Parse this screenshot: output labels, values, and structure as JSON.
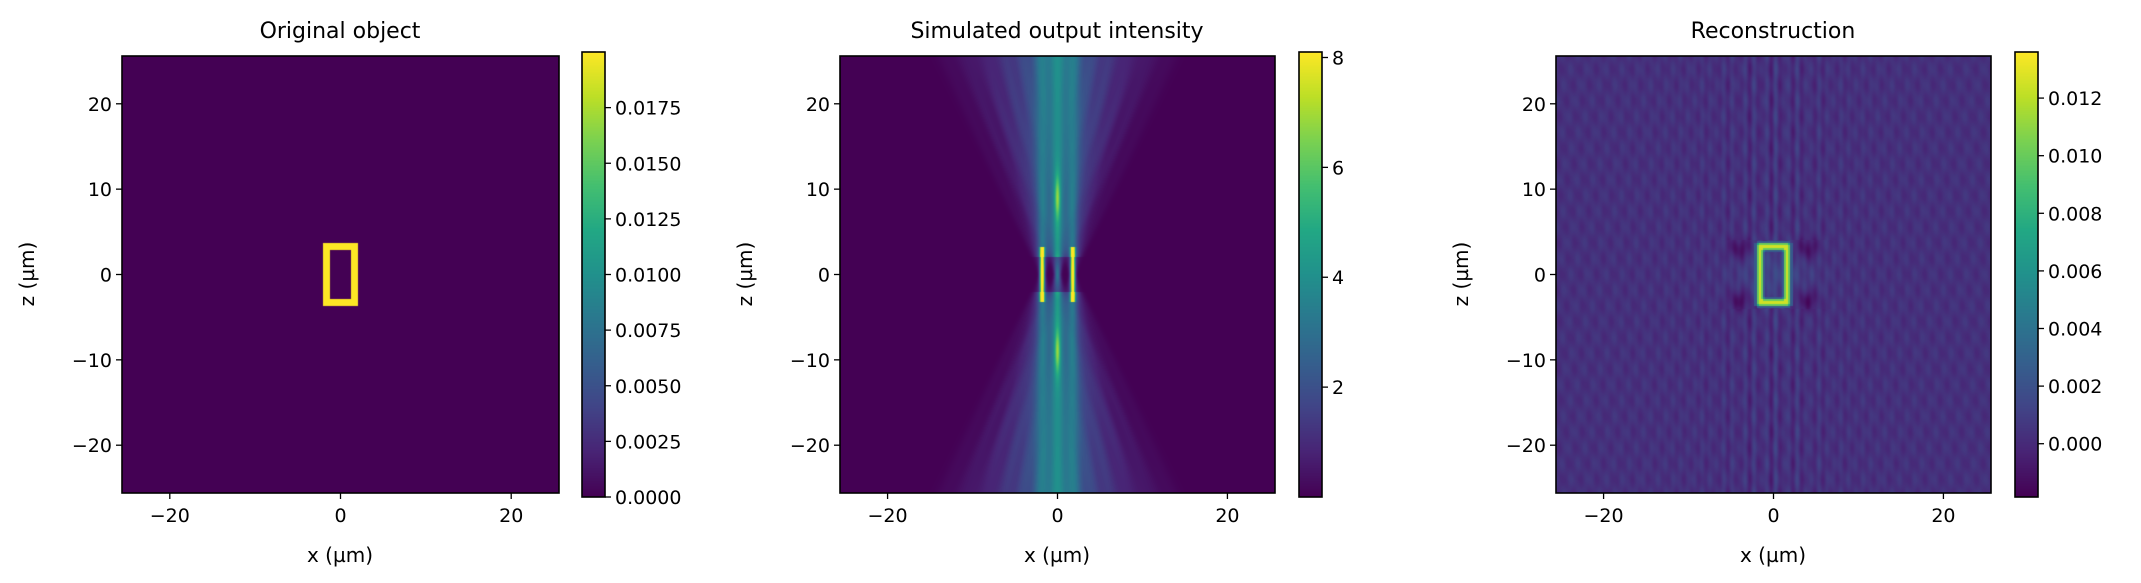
{
  "chart_data": [
    {
      "type": "heatmap",
      "title": "Original object",
      "xlabel": "x (µm)",
      "ylabel": "z (µm)",
      "xlim": [
        -25.6,
        25.6
      ],
      "ylim": [
        -25.6,
        25.6
      ],
      "xticks": [
        "−20",
        "0",
        "20"
      ],
      "xtick_values": [
        -20,
        0,
        20
      ],
      "yticks": [
        "−20",
        "−10",
        "0",
        "10",
        "20"
      ],
      "ytick_values": [
        -20,
        -10,
        0,
        10,
        20
      ],
      "colormap": "viridis",
      "colorbar": {
        "range": [
          0.0,
          0.02
        ],
        "tick_values": [
          0.0,
          0.0025,
          0.005,
          0.0075,
          0.01,
          0.0125,
          0.015,
          0.0175
        ],
        "tick_labels": [
          "0.0000",
          "0.0025",
          "0.0050",
          "0.0075",
          "0.0100",
          "0.0125",
          "0.0150",
          "0.0175"
        ]
      },
      "features": {
        "background_value": 0.0,
        "rectangle_outline": {
          "x_range": [
            -2.0,
            2.0
          ],
          "z_range": [
            -3.7,
            3.7
          ],
          "thickness": 0.8,
          "value": 0.02
        }
      }
    },
    {
      "type": "heatmap",
      "title": "Simulated output intensity",
      "xlabel": "x (µm)",
      "ylabel": "z (µm)",
      "xlim": [
        -25.6,
        25.6
      ],
      "ylim": [
        -25.6,
        25.6
      ],
      "xticks": [
        "−20",
        "0",
        "20"
      ],
      "xtick_values": [
        -20,
        0,
        20
      ],
      "yticks": [
        "−20",
        "−10",
        "0",
        "10",
        "20"
      ],
      "ytick_values": [
        -20,
        -10,
        0,
        10,
        20
      ],
      "colormap": "viridis",
      "colorbar": {
        "range": [
          0.0,
          8.1
        ],
        "tick_values": [
          2,
          4,
          6,
          8
        ],
        "tick_labels": [
          "2",
          "4",
          "6",
          "8"
        ]
      },
      "features": {
        "background_value": 0.0,
        "edge_peaks": {
          "x_positions": [
            -1.8,
            1.8
          ],
          "z_range": [
            -3.2,
            3.2
          ],
          "value": 8.0
        },
        "beam_pattern": "hourglass fan of diffracted beams crossing near z = 0"
      }
    },
    {
      "type": "heatmap",
      "title": "Reconstruction",
      "xlabel": "x (µm)",
      "ylabel": "z (µm)",
      "xlim": [
        -25.6,
        25.6
      ],
      "ylim": [
        -25.6,
        25.6
      ],
      "xticks": [
        "−20",
        "0",
        "20"
      ],
      "xtick_values": [
        -20,
        0,
        20
      ],
      "yticks": [
        "−20",
        "−10",
        "0",
        "10",
        "20"
      ],
      "ytick_values": [
        -20,
        -10,
        0,
        10,
        20
      ],
      "colormap": "viridis",
      "colorbar": {
        "range": [
          -0.00185,
          0.0136
        ],
        "tick_values": [
          0.0,
          0.002,
          0.004,
          0.006,
          0.008,
          0.01,
          0.012
        ],
        "tick_labels": [
          "0.000",
          "0.002",
          "0.004",
          "0.006",
          "0.008",
          "0.010",
          "0.012"
        ]
      },
      "features": {
        "background_value": 0.0003,
        "rectangle_outline": {
          "x_range": [
            -2.0,
            2.0
          ],
          "z_range": [
            -3.7,
            3.7
          ],
          "thickness": 0.8,
          "value": 0.0125
        },
        "dark_spots": {
          "x_positions": [
            -4,
            4
          ],
          "z_positions": [
            -3,
            3
          ],
          "value": -0.0017
        }
      }
    }
  ]
}
